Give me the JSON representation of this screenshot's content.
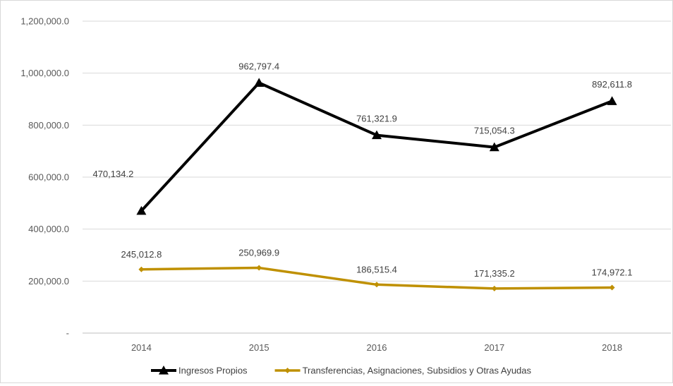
{
  "chart_data": {
    "type": "line",
    "categories": [
      "2014",
      "2015",
      "2016",
      "2017",
      "2018"
    ],
    "series": [
      {
        "name": "Ingresos Propios",
        "values": [
          470134.2,
          962797.4,
          761321.9,
          715054.3,
          892611.8
        ],
        "labels": [
          "470,134.2",
          "962,797.4",
          "761,321.9",
          "715,054.3",
          "892,611.8"
        ],
        "color": "#000000",
        "marker": "triangle"
      },
      {
        "name": "Transferencias, Asignaciones, Subsidios y Otras Ayudas",
        "values": [
          245012.8,
          250969.9,
          186515.4,
          171335.2,
          174972.1
        ],
        "labels": [
          "245,012.8",
          "250,969.9",
          "186,515.4",
          "171,335.2",
          "174,972.1"
        ],
        "color": "#bf9000",
        "marker": "diamond"
      }
    ],
    "ylim": [
      0,
      1200000
    ],
    "yticks": [
      0,
      200000,
      400000,
      600000,
      800000,
      1000000,
      1200000
    ],
    "ytick_labels": [
      "-",
      "200,000.0",
      "400,000.0",
      "600,000.0",
      "800,000.0",
      "1,000,000.0",
      "1,200,000.0"
    ],
    "grid": true,
    "legend": "bottom",
    "title": "",
    "xlabel": "",
    "ylabel": ""
  }
}
